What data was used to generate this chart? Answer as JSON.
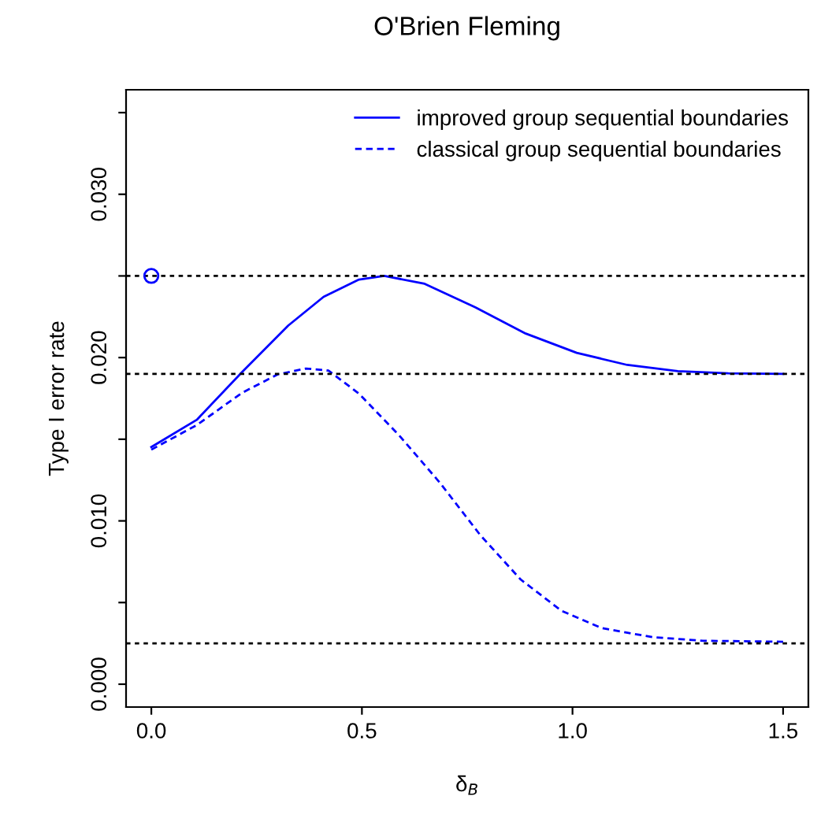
{
  "chart_data": {
    "type": "line",
    "title": "O'Brien Fleming",
    "xlabel": "δ$_{B}$",
    "ylabel": "Type I error rate",
    "xlim": [
      -0.06,
      1.56
    ],
    "xticks": [
      {
        "value": 0,
        "label": "0.0"
      },
      {
        "value": 0.5,
        "label": "0.5"
      },
      {
        "value": 1,
        "label": "1.0"
      },
      {
        "value": 1.5,
        "label": "1.5"
      }
    ],
    "ylim": [
      -0.0014,
      0.0364
    ],
    "yticks": [
      {
        "value": 0,
        "label": "0.000"
      },
      {
        "value": 0.005,
        "label": null
      },
      {
        "value": 0.01,
        "label": "0.010"
      },
      {
        "value": 0.015,
        "label": null
      },
      {
        "value": 0.02,
        "label": "0.020"
      },
      {
        "value": 0.025,
        "label": null
      },
      {
        "value": 0.03,
        "label": "0.030"
      },
      {
        "value": 0.035,
        "label": null
      }
    ],
    "legend": "top right",
    "grid": false,
    "series": [
      {
        "name": "improved group sequential boundaries",
        "color": "#0000ff",
        "line_style": "solid",
        "marker": "none",
        "x": [
          0,
          0.108,
          0.216,
          0.325,
          0.409,
          0.493,
          0.553,
          0.649,
          0.769,
          0.889,
          1.01,
          1.13,
          1.25,
          1.37,
          1.5
        ],
        "values": [
          0.01452,
          0.01619,
          0.01913,
          0.02196,
          0.02372,
          0.02478,
          0.025,
          0.02452,
          0.02308,
          0.02147,
          0.02029,
          0.01955,
          0.01917,
          0.01904,
          0.019
        ]
      },
      {
        "name": "classical group sequential boundaries",
        "color": "#0000ff",
        "line_style": "dashed",
        "marker": "none",
        "x": [
          0,
          0.108,
          0.216,
          0.3,
          0.367,
          0.421,
          0.493,
          0.589,
          0.685,
          0.781,
          0.877,
          0.974,
          1.07,
          1.19,
          1.31,
          1.5
        ],
        "values": [
          0.01436,
          0.01587,
          0.01785,
          0.01897,
          0.01933,
          0.0192,
          0.01779,
          0.01522,
          0.01234,
          0.00913,
          0.00641,
          0.00449,
          0.00343,
          0.00288,
          0.00266,
          0.0026
        ]
      },
      {
        "type": "scatter",
        "color": "#0000ff",
        "marker": "circle",
        "x": [
          0
        ],
        "values": [
          0.025
        ]
      }
    ],
    "ref_lines": [
      {
        "axis": "y",
        "value": 0.025,
        "color": "#000000",
        "line_style": "dotted"
      },
      {
        "axis": "y",
        "value": 0.019,
        "color": "#000000",
        "line_style": "dotted"
      },
      {
        "axis": "y",
        "value": 0.0025,
        "color": "#000000",
        "line_style": "dotted"
      }
    ]
  }
}
